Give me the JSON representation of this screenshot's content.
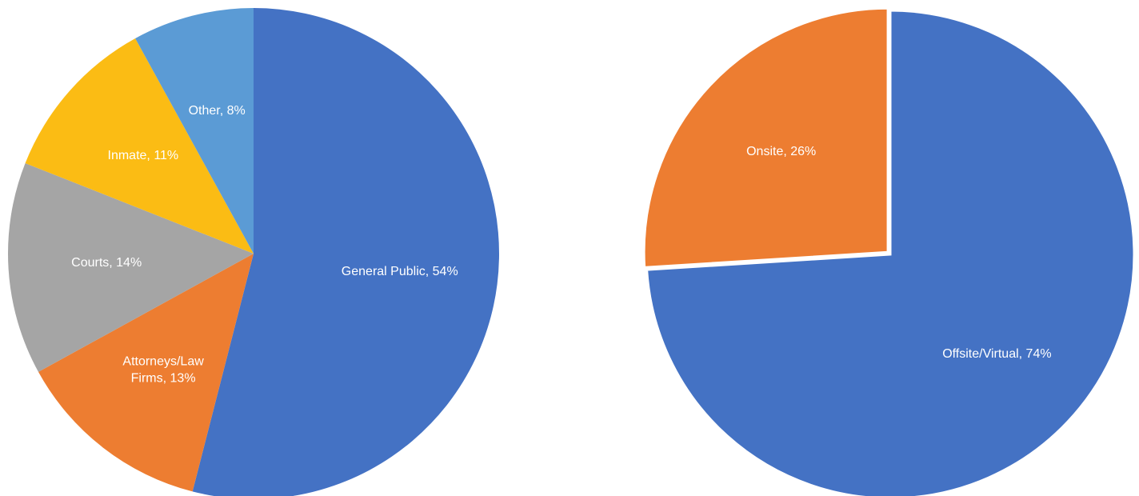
{
  "chart_data": [
    {
      "type": "pie",
      "values": [
        54,
        13,
        14,
        11,
        8
      ],
      "value_labels": [
        "General Public, 54%",
        "Attorneys/Law Firms, 13%",
        "Courts, 14%",
        "Inmate, 11%",
        "Other, 8%"
      ],
      "colors": [
        "#4472c4",
        "#ed7d31",
        "#a5a5a5",
        "#fbbc14",
        "#5b9bd5"
      ]
    },
    {
      "type": "pie",
      "values": [
        74,
        26
      ],
      "value_labels": [
        "Offsite/Virtual, 74%",
        "Onsite, 26%"
      ],
      "colors": [
        "#4472c4",
        "#ed7d31"
      ]
    }
  ]
}
